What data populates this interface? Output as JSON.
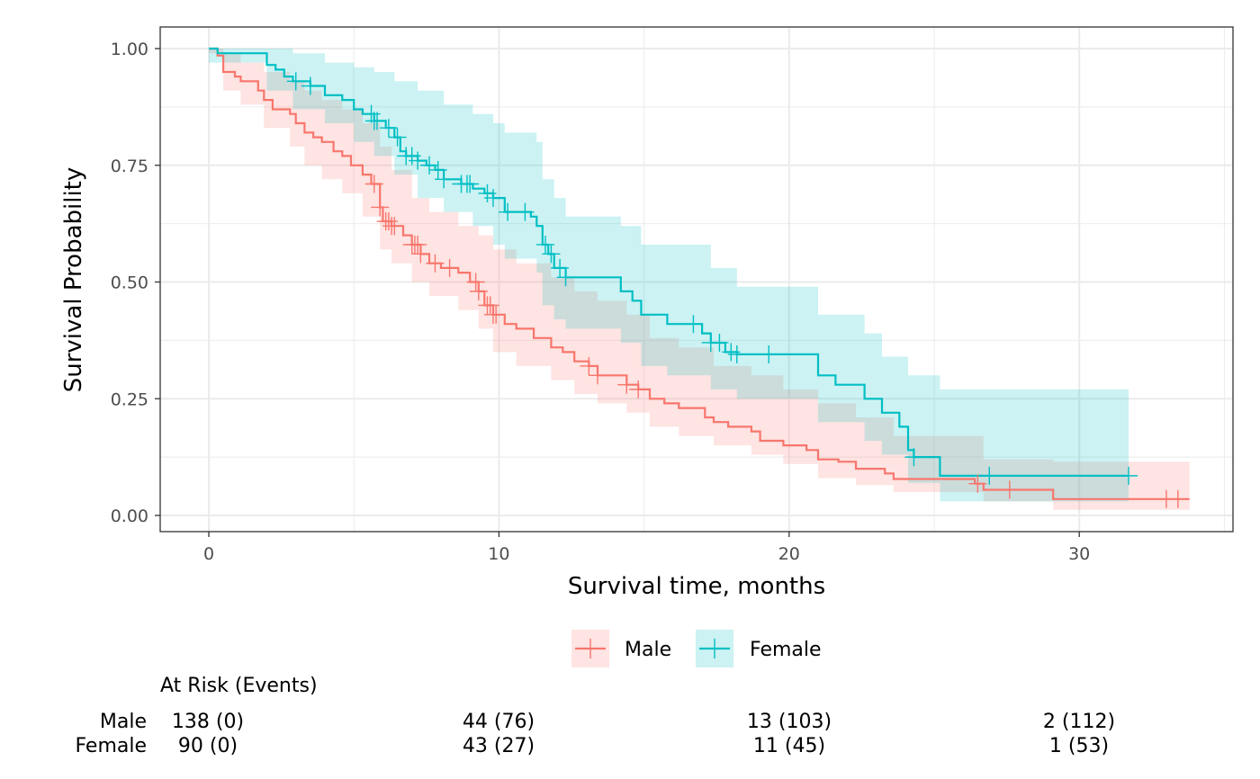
{
  "chart_data": {
    "type": "line",
    "subtype": "kaplan-meier step",
    "title": "",
    "xlabel": "Survival time, months",
    "ylabel": "Survival Probability",
    "xlim": [
      -1.7,
      35
    ],
    "ylim": [
      -0.036,
      1.05
    ],
    "x_ticks": [
      0,
      10,
      20,
      30
    ],
    "x_tick_labels": [
      "0",
      "10",
      "20",
      "30"
    ],
    "y_ticks": [
      0,
      0.25,
      0.5,
      0.75,
      1.0
    ],
    "y_tick_labels": [
      "0.00",
      "0.25",
      "0.50",
      "0.75",
      "1.00"
    ],
    "grid": true,
    "legend_position": "bottom",
    "series": [
      {
        "name": "Male",
        "color": "#F8766D",
        "band_color": "#F8766D",
        "steps": [
          [
            0,
            1.0
          ],
          [
            0.3,
            0.985
          ],
          [
            0.5,
            0.95
          ],
          [
            0.9,
            0.94
          ],
          [
            1.1,
            0.93
          ],
          [
            1.7,
            0.91
          ],
          [
            1.9,
            0.89
          ],
          [
            2.2,
            0.87
          ],
          [
            2.8,
            0.86
          ],
          [
            3.0,
            0.84
          ],
          [
            3.3,
            0.82
          ],
          [
            3.6,
            0.81
          ],
          [
            3.9,
            0.8
          ],
          [
            4.3,
            0.78
          ],
          [
            4.6,
            0.77
          ],
          [
            4.9,
            0.75
          ],
          [
            5.3,
            0.73
          ],
          [
            5.6,
            0.71
          ],
          [
            5.9,
            0.66
          ],
          [
            6.0,
            0.63
          ],
          [
            6.3,
            0.62
          ],
          [
            6.7,
            0.6
          ],
          [
            7.0,
            0.58
          ],
          [
            7.3,
            0.56
          ],
          [
            7.6,
            0.54
          ],
          [
            8.0,
            0.53
          ],
          [
            8.6,
            0.52
          ],
          [
            9.0,
            0.5
          ],
          [
            9.3,
            0.48
          ],
          [
            9.5,
            0.45
          ],
          [
            9.8,
            0.43
          ],
          [
            10.2,
            0.41
          ],
          [
            10.6,
            0.4
          ],
          [
            11.2,
            0.38
          ],
          [
            11.8,
            0.36
          ],
          [
            12.2,
            0.35
          ],
          [
            12.6,
            0.33
          ],
          [
            13.1,
            0.32
          ],
          [
            13.4,
            0.3
          ],
          [
            14.1,
            0.3
          ],
          [
            14.4,
            0.28
          ],
          [
            14.8,
            0.27
          ],
          [
            15.2,
            0.25
          ],
          [
            15.7,
            0.24
          ],
          [
            16.2,
            0.23
          ],
          [
            17.1,
            0.21
          ],
          [
            17.4,
            0.2
          ],
          [
            17.9,
            0.19
          ],
          [
            18.7,
            0.18
          ],
          [
            19.0,
            0.16
          ],
          [
            19.8,
            0.15
          ],
          [
            20.6,
            0.14
          ],
          [
            21.0,
            0.12
          ],
          [
            21.7,
            0.115
          ],
          [
            22.3,
            0.1
          ],
          [
            23.3,
            0.09
          ],
          [
            23.6,
            0.078
          ],
          [
            26.4,
            0.068
          ],
          [
            26.7,
            0.055
          ],
          [
            29.1,
            0.035
          ],
          [
            33.8,
            0.035
          ]
        ],
        "ci_lower": [
          [
            0,
            0.99
          ],
          [
            0.5,
            0.91
          ],
          [
            1.1,
            0.88
          ],
          [
            1.9,
            0.83
          ],
          [
            2.8,
            0.79
          ],
          [
            3.3,
            0.75
          ],
          [
            3.9,
            0.72
          ],
          [
            4.6,
            0.69
          ],
          [
            5.3,
            0.64
          ],
          [
            5.9,
            0.57
          ],
          [
            6.3,
            0.54
          ],
          [
            7.0,
            0.5
          ],
          [
            7.6,
            0.47
          ],
          [
            8.6,
            0.44
          ],
          [
            9.3,
            0.4
          ],
          [
            9.8,
            0.35
          ],
          [
            10.6,
            0.32
          ],
          [
            11.8,
            0.29
          ],
          [
            12.6,
            0.26
          ],
          [
            13.4,
            0.24
          ],
          [
            14.4,
            0.22
          ],
          [
            15.2,
            0.19
          ],
          [
            16.2,
            0.17
          ],
          [
            17.4,
            0.15
          ],
          [
            18.7,
            0.13
          ],
          [
            19.8,
            0.11
          ],
          [
            21.0,
            0.08
          ],
          [
            22.3,
            0.065
          ],
          [
            23.6,
            0.05
          ],
          [
            26.7,
            0.03
          ],
          [
            29.1,
            0.012
          ],
          [
            33.8,
            0.012
          ]
        ],
        "ci_upper": [
          [
            0,
            1.0
          ],
          [
            0.5,
            0.99
          ],
          [
            1.1,
            0.97
          ],
          [
            1.9,
            0.95
          ],
          [
            2.8,
            0.93
          ],
          [
            3.3,
            0.91
          ],
          [
            3.9,
            0.89
          ],
          [
            4.6,
            0.87
          ],
          [
            5.3,
            0.84
          ],
          [
            5.9,
            0.79
          ],
          [
            6.3,
            0.74
          ],
          [
            7.0,
            0.68
          ],
          [
            7.6,
            0.65
          ],
          [
            8.6,
            0.62
          ],
          [
            9.3,
            0.6
          ],
          [
            9.8,
            0.57
          ],
          [
            10.6,
            0.54
          ],
          [
            11.8,
            0.51
          ],
          [
            12.6,
            0.48
          ],
          [
            13.4,
            0.46
          ],
          [
            14.4,
            0.43
          ],
          [
            15.2,
            0.38
          ],
          [
            16.2,
            0.36
          ],
          [
            17.4,
            0.32
          ],
          [
            18.7,
            0.3
          ],
          [
            19.8,
            0.27
          ],
          [
            21.0,
            0.24
          ],
          [
            22.3,
            0.21
          ],
          [
            23.6,
            0.17
          ],
          [
            26.7,
            0.12
          ],
          [
            29.1,
            0.115
          ],
          [
            33.8,
            0.115
          ]
        ],
        "censor_times": [
          5.7,
          5.9,
          6.1,
          6.2,
          6.3,
          6.4,
          7.0,
          7.1,
          7.2,
          7.3,
          7.8,
          8.3,
          9.2,
          9.3,
          9.6,
          9.7,
          9.8,
          9.9,
          13.1,
          13.4,
          14.4,
          14.8,
          26.5,
          27.6,
          33.0,
          33.4
        ]
      },
      {
        "name": "Female",
        "color": "#00BFC4",
        "band_color": "#00BFC4",
        "steps": [
          [
            0,
            1.0
          ],
          [
            0.3,
            0.99
          ],
          [
            2.0,
            0.965
          ],
          [
            2.3,
            0.955
          ],
          [
            2.6,
            0.94
          ],
          [
            2.9,
            0.93
          ],
          [
            3.5,
            0.92
          ],
          [
            4.0,
            0.9
          ],
          [
            4.6,
            0.89
          ],
          [
            5.0,
            0.87
          ],
          [
            5.3,
            0.86
          ],
          [
            5.7,
            0.845
          ],
          [
            6.1,
            0.83
          ],
          [
            6.4,
            0.81
          ],
          [
            6.6,
            0.78
          ],
          [
            6.8,
            0.77
          ],
          [
            7.2,
            0.76
          ],
          [
            7.5,
            0.75
          ],
          [
            7.8,
            0.74
          ],
          [
            8.1,
            0.72
          ],
          [
            8.7,
            0.71
          ],
          [
            9.1,
            0.7
          ],
          [
            9.5,
            0.69
          ],
          [
            9.8,
            0.68
          ],
          [
            10.2,
            0.65
          ],
          [
            11.1,
            0.64
          ],
          [
            11.3,
            0.62
          ],
          [
            11.5,
            0.58
          ],
          [
            11.7,
            0.56
          ],
          [
            11.9,
            0.53
          ],
          [
            12.3,
            0.51
          ],
          [
            13.9,
            0.51
          ],
          [
            14.2,
            0.48
          ],
          [
            14.6,
            0.46
          ],
          [
            14.9,
            0.43
          ],
          [
            15.8,
            0.41
          ],
          [
            17.0,
            0.39
          ],
          [
            17.3,
            0.37
          ],
          [
            17.8,
            0.35
          ],
          [
            18.2,
            0.345
          ],
          [
            21.0,
            0.3
          ],
          [
            21.6,
            0.28
          ],
          [
            22.6,
            0.25
          ],
          [
            23.2,
            0.22
          ],
          [
            23.8,
            0.19
          ],
          [
            24.1,
            0.14
          ],
          [
            24.3,
            0.125
          ],
          [
            25.2,
            0.085
          ],
          [
            31.7,
            0.085
          ]
        ],
        "ci_lower": [
          [
            0,
            0.97
          ],
          [
            2.0,
            0.91
          ],
          [
            2.9,
            0.87
          ],
          [
            4.0,
            0.84
          ],
          [
            5.0,
            0.8
          ],
          [
            5.7,
            0.77
          ],
          [
            6.4,
            0.73
          ],
          [
            7.2,
            0.68
          ],
          [
            8.1,
            0.65
          ],
          [
            9.1,
            0.62
          ],
          [
            9.8,
            0.58
          ],
          [
            10.2,
            0.55
          ],
          [
            11.3,
            0.52
          ],
          [
            11.5,
            0.45
          ],
          [
            11.9,
            0.42
          ],
          [
            12.3,
            0.4
          ],
          [
            14.2,
            0.37
          ],
          [
            14.9,
            0.32
          ],
          [
            15.8,
            0.3
          ],
          [
            17.3,
            0.27
          ],
          [
            18.2,
            0.25
          ],
          [
            21.0,
            0.2
          ],
          [
            22.6,
            0.16
          ],
          [
            23.2,
            0.13
          ],
          [
            24.1,
            0.07
          ],
          [
            25.2,
            0.03
          ],
          [
            31.7,
            0.03
          ]
        ],
        "ci_upper": [
          [
            0,
            1.0
          ],
          [
            2.0,
            1.0
          ],
          [
            2.9,
            0.99
          ],
          [
            4.0,
            0.97
          ],
          [
            5.0,
            0.96
          ],
          [
            5.7,
            0.95
          ],
          [
            6.4,
            0.93
          ],
          [
            7.2,
            0.91
          ],
          [
            8.1,
            0.88
          ],
          [
            9.1,
            0.86
          ],
          [
            9.8,
            0.84
          ],
          [
            10.2,
            0.82
          ],
          [
            11.3,
            0.8
          ],
          [
            11.5,
            0.72
          ],
          [
            11.9,
            0.68
          ],
          [
            12.3,
            0.64
          ],
          [
            14.2,
            0.62
          ],
          [
            14.9,
            0.58
          ],
          [
            15.8,
            0.58
          ],
          [
            17.3,
            0.53
          ],
          [
            18.2,
            0.49
          ],
          [
            21.0,
            0.43
          ],
          [
            22.6,
            0.39
          ],
          [
            23.2,
            0.34
          ],
          [
            24.1,
            0.3
          ],
          [
            25.2,
            0.27
          ],
          [
            31.7,
            0.27
          ]
        ],
        "censor_times": [
          3.0,
          3.5,
          5.6,
          5.7,
          5.8,
          6.2,
          6.5,
          6.8,
          7.0,
          7.2,
          7.6,
          7.9,
          8.1,
          8.7,
          8.9,
          9.0,
          9.6,
          9.8,
          10.3,
          10.9,
          11.6,
          11.8,
          12.1,
          12.3,
          16.7,
          17.3,
          17.6,
          18.0,
          18.2,
          19.3,
          24.3,
          26.9,
          31.7
        ]
      }
    ],
    "risk_table": {
      "title": "At Risk (Events)",
      "times": [
        0,
        10,
        20,
        30
      ],
      "rows": [
        {
          "group": "Male",
          "cells": [
            "138 (0)",
            "44 (76)",
            "13 (103)",
            "2 (112)"
          ]
        },
        {
          "group": "Female",
          "cells": [
            "90 (0)",
            "43 (27)",
            "11 (45)",
            "1 (53)"
          ]
        }
      ]
    }
  }
}
